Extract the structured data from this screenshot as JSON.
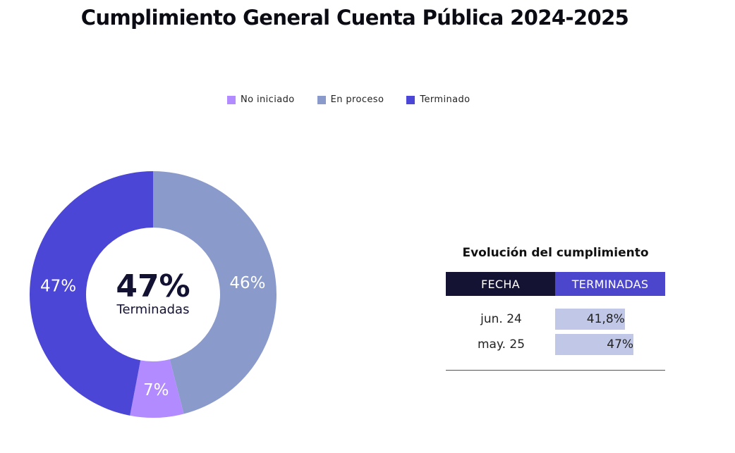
{
  "title": "Cumplimiento General Cuenta Pública 2024-2025",
  "colors": {
    "no_iniciado": "#b18bff",
    "en_proceso": "#8a9acb",
    "terminado": "#4b46d6",
    "table_header_fecha": "#151334",
    "table_header_terminadas": "#4b46cc",
    "progress_bar": "#c1c8e7"
  },
  "chart_data": [
    {
      "type": "pie",
      "variant": "donut",
      "legend": [
        "No iniciado",
        "En proceso",
        "Terminado"
      ],
      "legend_position": "top-center",
      "slices": [
        {
          "label": "En proceso",
          "value": 46,
          "display": "46%"
        },
        {
          "label": "No iniciado",
          "value": 7,
          "display": "7%"
        },
        {
          "label": "Terminado",
          "value": 47,
          "display": "47%"
        }
      ],
      "center_value": "47%",
      "center_label": "Terminadas"
    },
    {
      "type": "table",
      "title": "Evolución del cumplimiento",
      "columns": [
        "FECHA",
        "TERMINADAS"
      ],
      "rows": [
        {
          "fecha": "jun. 24",
          "value": 41.8,
          "display": "41,8%"
        },
        {
          "fecha": "may. 25",
          "value": 47,
          "display": "47%"
        }
      ]
    }
  ]
}
